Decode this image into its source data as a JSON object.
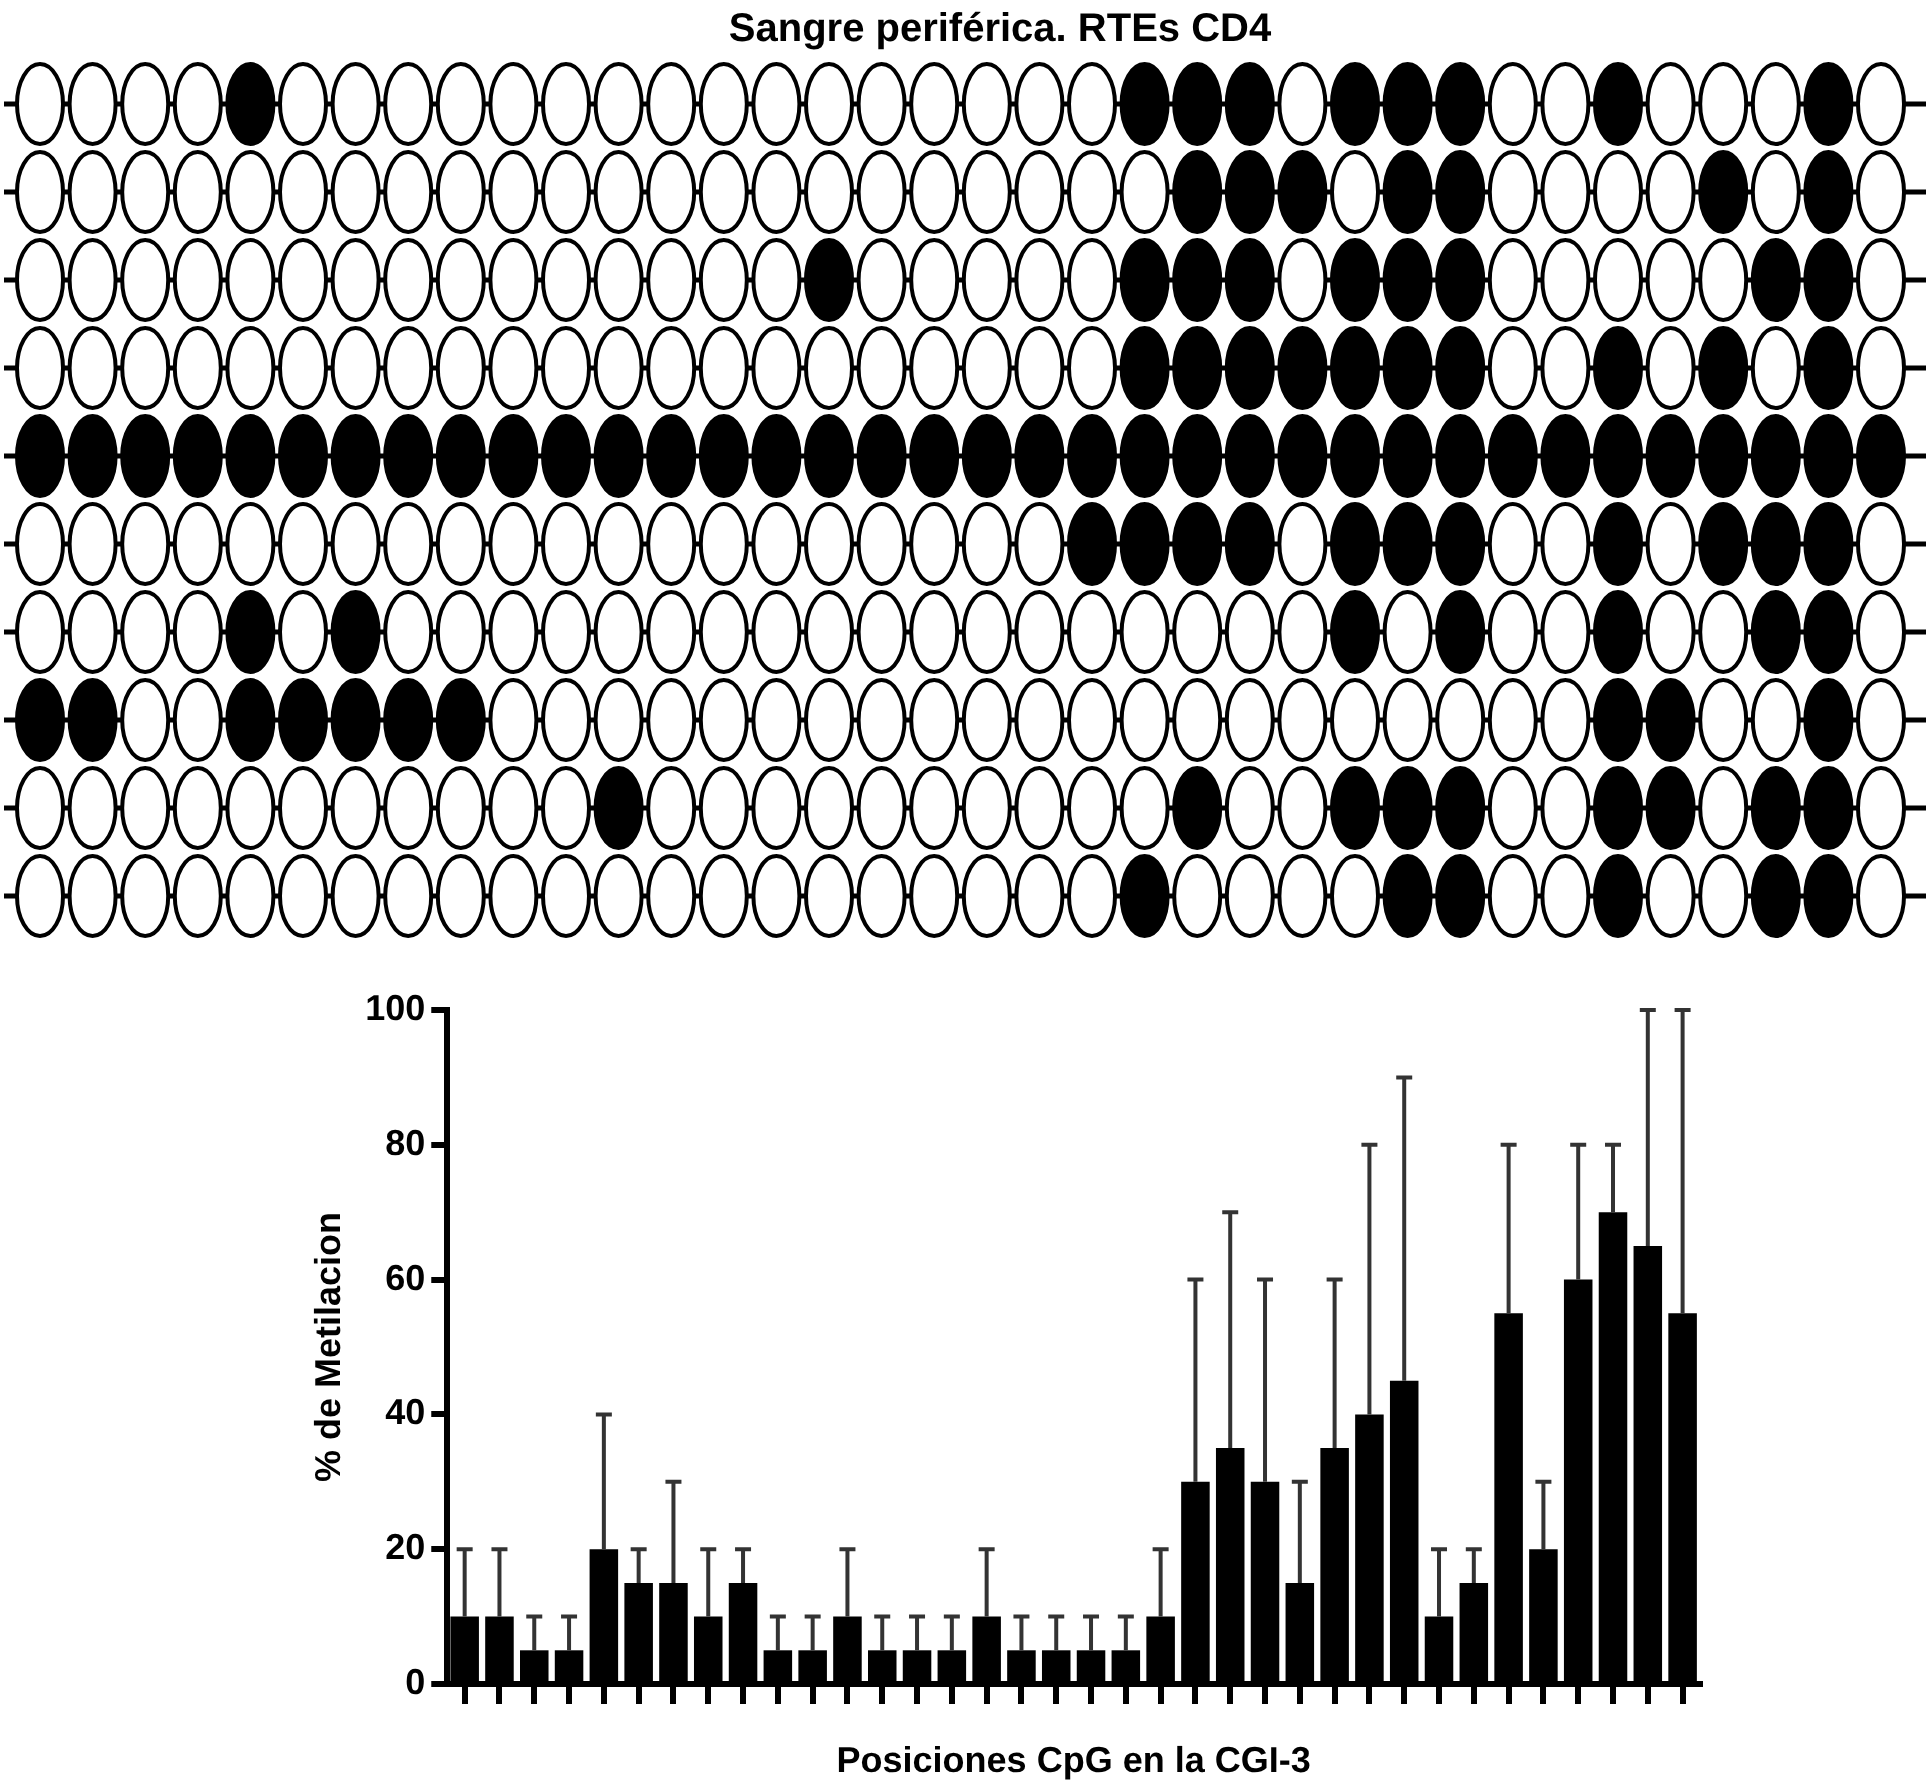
{
  "chart_data": {
    "type": "bar",
    "title": "Sangre periférica. RTEs CD4",
    "xlabel": "Posiciones CpG en la CGI-3",
    "ylabel": "% de Metilacion",
    "categories": [
      null,
      null,
      null,
      null,
      null,
      null,
      null,
      null,
      null,
      null,
      null,
      null,
      null,
      null,
      null,
      null,
      null,
      null,
      null,
      null,
      null,
      null,
      null,
      null,
      null,
      null,
      null,
      null,
      null,
      null,
      null,
      null,
      null,
      null,
      null,
      null
    ],
    "values": [
      10,
      10,
      5,
      5,
      20,
      15,
      15,
      10,
      15,
      5,
      5,
      10,
      5,
      5,
      5,
      10,
      5,
      5,
      5,
      5,
      10,
      30,
      35,
      30,
      15,
      35,
      40,
      45,
      10,
      15,
      55,
      20,
      60,
      70,
      65,
      55
    ],
    "errors": [
      [
        10,
        20
      ],
      [
        10,
        20
      ],
      [
        5,
        10
      ],
      [
        5,
        10
      ],
      [
        20,
        40
      ],
      [
        15,
        20
      ],
      [
        15,
        30
      ],
      [
        10,
        20
      ],
      [
        15,
        20
      ],
      [
        5,
        10
      ],
      [
        5,
        10
      ],
      [
        10,
        20
      ],
      [
        5,
        10
      ],
      [
        5,
        10
      ],
      [
        5,
        10
      ],
      [
        10,
        20
      ],
      [
        5,
        10
      ],
      [
        5,
        10
      ],
      [
        5,
        10
      ],
      [
        5,
        10
      ],
      [
        10,
        20
      ],
      [
        30,
        60
      ],
      [
        35,
        70
      ],
      [
        30,
        60
      ],
      [
        15,
        30
      ],
      [
        35,
        60
      ],
      [
        40,
        80
      ],
      [
        45,
        90
      ],
      [
        10,
        20
      ],
      [
        15,
        20
      ],
      [
        55,
        80
      ],
      [
        20,
        30
      ],
      [
        60,
        80
      ],
      [
        70,
        80
      ],
      [
        65,
        100
      ],
      [
        55,
        100
      ]
    ],
    "color": "#000000",
    "ylim": [
      0,
      100
    ],
    "yticks": [
      0,
      20,
      40,
      60,
      80,
      100
    ]
  }
}
